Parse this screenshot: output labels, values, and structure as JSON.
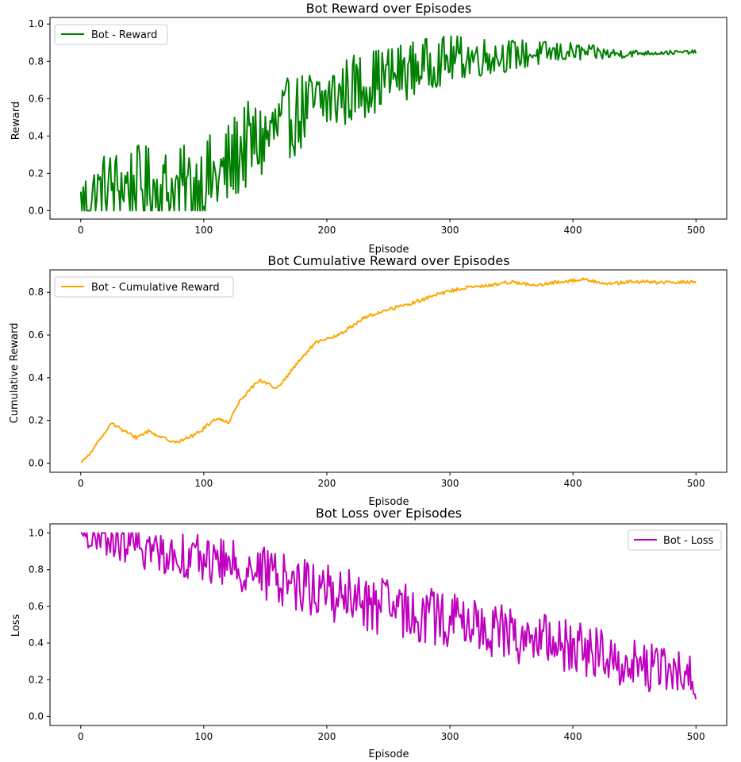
{
  "chart_data": [
    {
      "type": "line",
      "title": "Bot Reward over Episodes",
      "xlabel": "Episode",
      "ylabel": "Reward",
      "xlim": [
        -25,
        525
      ],
      "ylim": [
        -0.045,
        1.035
      ],
      "xticks": [
        0,
        100,
        200,
        300,
        400,
        500
      ],
      "yticks": [
        0.0,
        0.2,
        0.4,
        0.6,
        0.8,
        1.0
      ],
      "ytick_labels": [
        "0.0",
        "0.2",
        "0.4",
        "0.6",
        "0.8",
        "1.0"
      ],
      "legend_position": "top-left",
      "series": [
        {
          "name": "Bot - Reward",
          "color": "#008000",
          "style": "noisy",
          "anchors": [
            [
              0,
              0.02
            ],
            [
              20,
              0.12
            ],
            [
              40,
              0.14
            ],
            [
              60,
              0.12
            ],
            [
              80,
              0.1
            ],
            [
              100,
              0.15
            ],
            [
              115,
              0.18
            ],
            [
              130,
              0.33
            ],
            [
              150,
              0.38
            ],
            [
              170,
              0.5
            ],
            [
              190,
              0.56
            ],
            [
              210,
              0.62
            ],
            [
              230,
              0.68
            ],
            [
              250,
              0.72
            ],
            [
              270,
              0.76
            ],
            [
              290,
              0.8
            ],
            [
              310,
              0.82
            ],
            [
              340,
              0.83
            ],
            [
              370,
              0.84
            ],
            [
              400,
              0.85
            ],
            [
              430,
              0.84
            ],
            [
              460,
              0.845
            ],
            [
              500,
              0.85
            ]
          ],
          "noise": [
            [
              0,
              0.12
            ],
            [
              110,
              0.16
            ],
            [
              220,
              0.12
            ],
            [
              300,
              0.08
            ],
            [
              380,
              0.04
            ],
            [
              430,
              0.02
            ],
            [
              460,
              0.008
            ],
            [
              500,
              0.006
            ]
          ],
          "clip": [
            0,
            0.97
          ]
        }
      ]
    },
    {
      "type": "line",
      "title": "Bot Cumulative Reward over Episodes",
      "xlabel": "Episode",
      "ylabel": "Cumulative Reward",
      "xlim": [
        -25,
        525
      ],
      "ylim": [
        -0.043,
        0.905
      ],
      "xticks": [
        0,
        100,
        200,
        300,
        400,
        500
      ],
      "yticks": [
        0.0,
        0.2,
        0.4,
        0.6,
        0.8
      ],
      "ytick_labels": [
        "0.0",
        "0.2",
        "0.4",
        "0.6",
        "0.8"
      ],
      "legend_position": "top-left",
      "series": [
        {
          "name": "Bot - Cumulative Reward",
          "color": "#ffa500",
          "style": "smooth",
          "anchors": [
            [
              0,
              0.0
            ],
            [
              10,
              0.06
            ],
            [
              20,
              0.15
            ],
            [
              25,
              0.19
            ],
            [
              35,
              0.15
            ],
            [
              45,
              0.12
            ],
            [
              55,
              0.15
            ],
            [
              70,
              0.11
            ],
            [
              80,
              0.1
            ],
            [
              95,
              0.14
            ],
            [
              110,
              0.21
            ],
            [
              120,
              0.19
            ],
            [
              130,
              0.3
            ],
            [
              145,
              0.39
            ],
            [
              160,
              0.35
            ],
            [
              175,
              0.46
            ],
            [
              190,
              0.56
            ],
            [
              210,
              0.6
            ],
            [
              230,
              0.68
            ],
            [
              250,
              0.72
            ],
            [
              270,
              0.75
            ],
            [
              290,
              0.79
            ],
            [
              310,
              0.82
            ],
            [
              330,
              0.83
            ],
            [
              350,
              0.85
            ],
            [
              370,
              0.83
            ],
            [
              390,
              0.85
            ],
            [
              410,
              0.86
            ],
            [
              430,
              0.84
            ],
            [
              450,
              0.85
            ],
            [
              480,
              0.845
            ],
            [
              500,
              0.85
            ]
          ],
          "noise": [
            [
              0,
              0.008
            ],
            [
              500,
              0.008
            ]
          ]
        }
      ]
    },
    {
      "type": "line",
      "title": "Bot Loss over Episodes",
      "xlabel": "Episode",
      "ylabel": "Loss",
      "xlim": [
        -25,
        525
      ],
      "ylim": [
        -0.05,
        1.05
      ],
      "xticks": [
        0,
        100,
        200,
        300,
        400,
        500
      ],
      "yticks": [
        0.0,
        0.2,
        0.4,
        0.6,
        0.8,
        1.0
      ],
      "ytick_labels": [
        "0.0",
        "0.2",
        "0.4",
        "0.6",
        "0.8",
        "1.0"
      ],
      "legend_position": "top-right",
      "series": [
        {
          "name": "Bot - Loss",
          "color": "#bf00bf",
          "style": "noisy",
          "anchors": [
            [
              0,
              1.0
            ],
            [
              5,
              1.0
            ],
            [
              10,
              0.95
            ],
            [
              30,
              0.95
            ],
            [
              60,
              0.9
            ],
            [
              100,
              0.86
            ],
            [
              140,
              0.8
            ],
            [
              180,
              0.72
            ],
            [
              200,
              0.68
            ],
            [
              240,
              0.6
            ],
            [
              280,
              0.55
            ],
            [
              320,
              0.5
            ],
            [
              360,
              0.43
            ],
            [
              400,
              0.38
            ],
            [
              440,
              0.3
            ],
            [
              480,
              0.24
            ],
            [
              500,
              0.22
            ]
          ],
          "noise": [
            [
              0,
              0.0
            ],
            [
              8,
              0.06
            ],
            [
              100,
              0.08
            ],
            [
              200,
              0.1
            ],
            [
              300,
              0.1
            ],
            [
              400,
              0.09
            ],
            [
              500,
              0.08
            ]
          ],
          "clip": [
            0.01,
            1.0
          ]
        }
      ]
    }
  ]
}
